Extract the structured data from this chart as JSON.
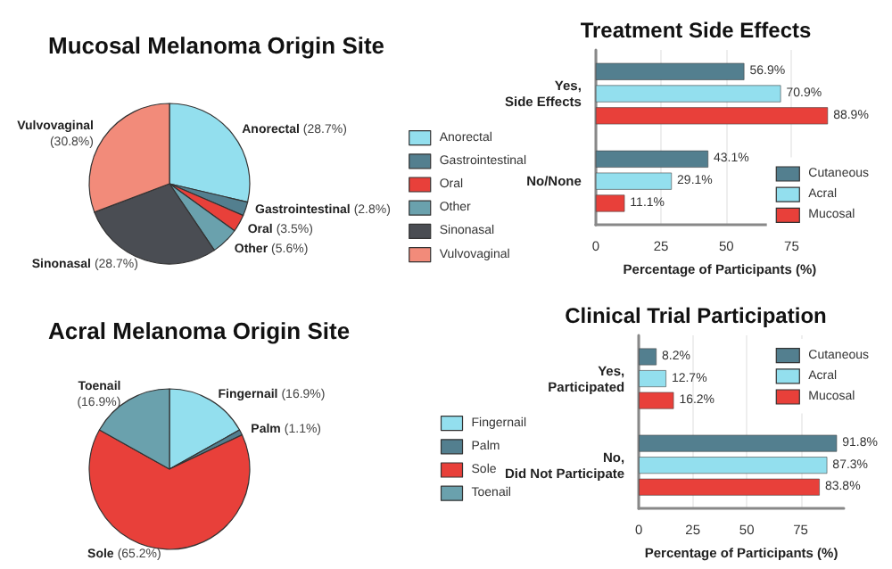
{
  "chart_data": [
    {
      "type": "pie",
      "title": "Mucosal Melanoma Origin Site",
      "categories": [
        "Anorectal",
        "Gastrointestinal",
        "Oral",
        "Other",
        "Sinonasal",
        "Vulvovaginal"
      ],
      "values": [
        28.7,
        2.8,
        3.5,
        5.6,
        28.7,
        30.8
      ],
      "value_labels": [
        "(28.7%)",
        "(2.8%)",
        "(3.5%)",
        "(5.6%)",
        "(28.7%)",
        "(30.8%)"
      ],
      "colors": [
        "#93dfee",
        "#537f8f",
        "#e8403a",
        "#6aa1ad",
        "#4a4d53",
        "#f28b7a"
      ],
      "legend": "right"
    },
    {
      "type": "bar",
      "orientation": "horizontal",
      "title": "Treatment Side Effects",
      "xlabel": "Percentage of Participants (%)",
      "categories": [
        "Yes, Side Effects",
        "No/None"
      ],
      "series": [
        {
          "name": "Cutaneous",
          "color": "#537f8f",
          "values": [
            56.9,
            43.1
          ],
          "value_labels": [
            "56.9%",
            "43.1%"
          ]
        },
        {
          "name": "Acral",
          "color": "#93dfee",
          "values": [
            70.9,
            29.1
          ],
          "value_labels": [
            "70.9%",
            "29.1%"
          ]
        },
        {
          "name": "Mucosal",
          "color": "#e8403a",
          "values": [
            88.9,
            11.1
          ],
          "value_labels": [
            "88.9%",
            "11.1%"
          ]
        }
      ],
      "xlim": [
        0,
        95
      ],
      "xticks": [
        0,
        25,
        50,
        75
      ],
      "grid": "x",
      "legend": "bottom right"
    },
    {
      "type": "pie",
      "title": "Acral Melanoma Origin Site",
      "categories": [
        "Fingernail",
        "Palm",
        "Sole",
        "Toenail"
      ],
      "values": [
        16.9,
        1.1,
        65.2,
        16.9
      ],
      "value_labels": [
        "(16.9%)",
        "(1.1%)",
        "(65.2%)",
        "(16.9%)"
      ],
      "colors": [
        "#93dfee",
        "#537f8f",
        "#e8403a",
        "#6aa1ad"
      ],
      "legend": "right"
    },
    {
      "type": "bar",
      "orientation": "horizontal",
      "title": "Clinical Trial Participation",
      "xlabel": "Percentage of Participants (%)",
      "categories": [
        "Yes, Participated",
        "No, Did Not Participate"
      ],
      "series": [
        {
          "name": "Cutaneous",
          "color": "#537f8f",
          "values": [
            8.2,
            91.8
          ],
          "value_labels": [
            "8.2%",
            "91.8%"
          ]
        },
        {
          "name": "Acral",
          "color": "#93dfee",
          "values": [
            12.7,
            87.3
          ],
          "value_labels": [
            "12.7%",
            "87.3%"
          ]
        },
        {
          "name": "Mucosal",
          "color": "#e8403a",
          "values": [
            16.2,
            83.8
          ],
          "value_labels": [
            "16.2%",
            "83.8%"
          ]
        }
      ],
      "xlim": [
        0,
        95
      ],
      "xticks": [
        0,
        25,
        50,
        75
      ],
      "grid": "x",
      "legend": "top right"
    }
  ]
}
